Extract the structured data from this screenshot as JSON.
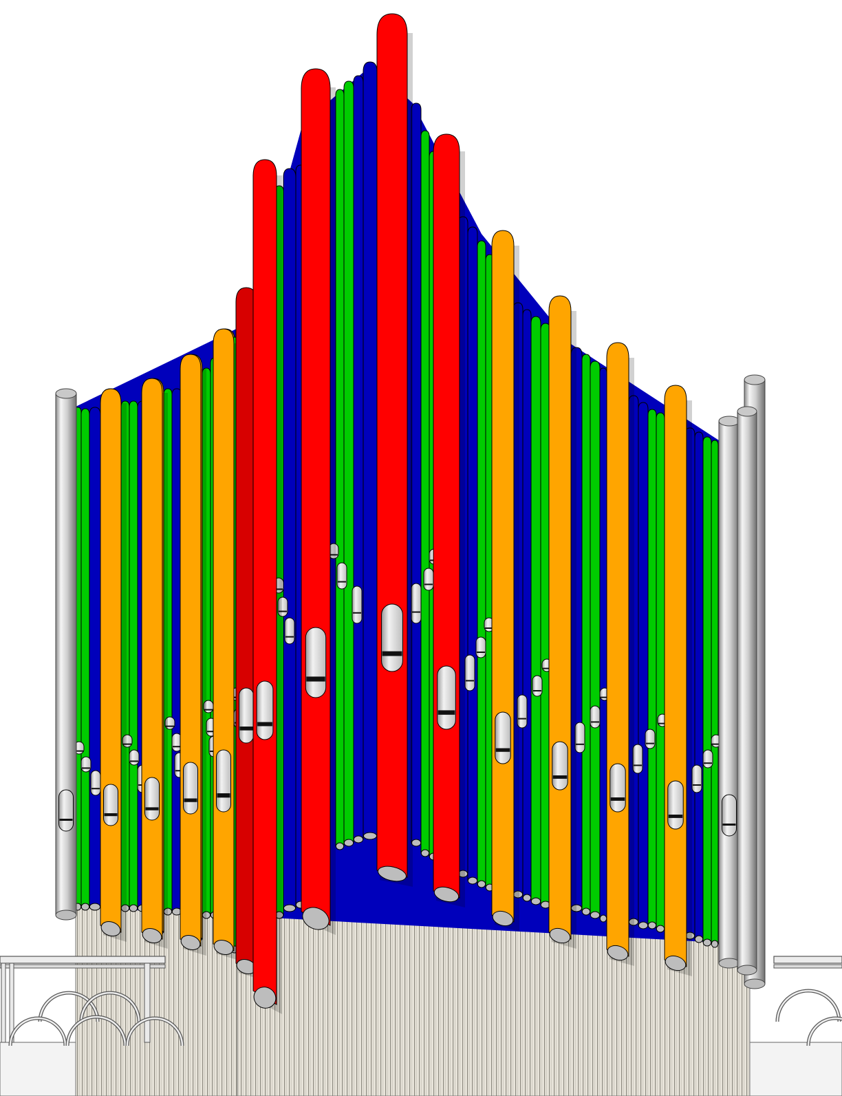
{
  "drawing": {
    "subject": "organ-facade-elevation",
    "colors": {
      "red": "#ff0000",
      "red_dark": "#d70000",
      "blue": "#0000bb",
      "green": "#00cc00",
      "orange": "#ffa500",
      "orange_dark": "#e08a00",
      "silver_light": "#f2f2f2",
      "silver_mid": "#b8b8b8",
      "silver_dark": "#7a7a7a",
      "mouth_fill": "#e6e6e6",
      "outline": "#000000",
      "case_stripe_light": "#e8e4da",
      "case_stripe_dark": "#8d8a80",
      "base_fill": "#efefef",
      "background": "#ffffff"
    }
  }
}
